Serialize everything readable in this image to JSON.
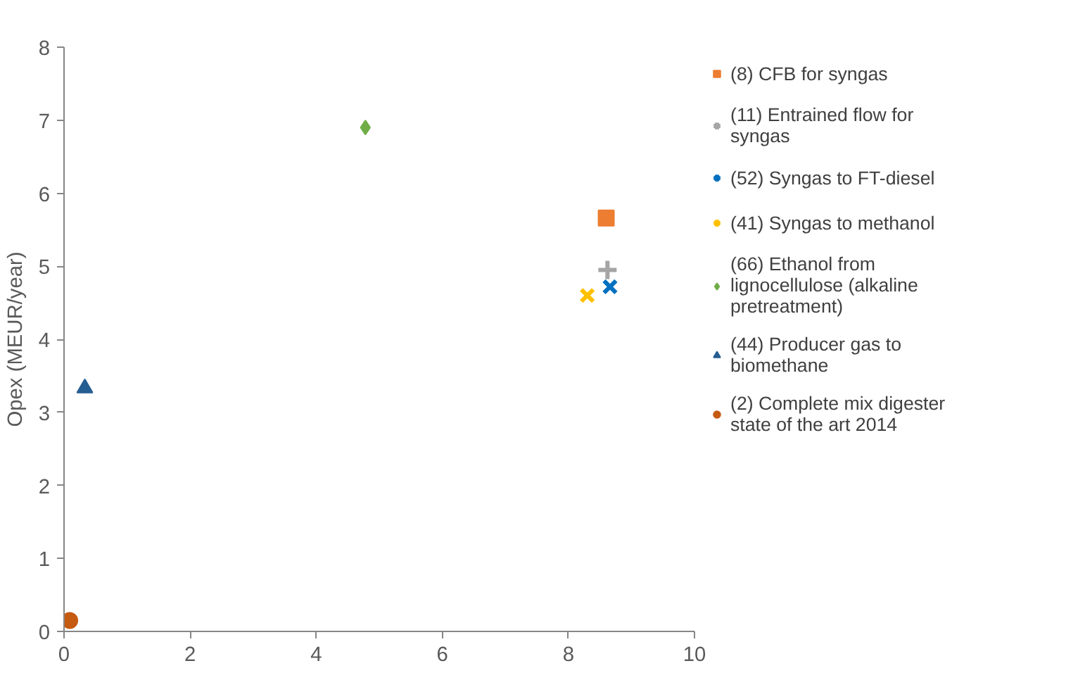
{
  "chart_data": {
    "type": "scatter",
    "ylabel": "Opex (MEUR/year)",
    "xlim": [
      0,
      10
    ],
    "ylim": [
      0,
      8
    ],
    "xticks": [
      0,
      2,
      4,
      6,
      8,
      10
    ],
    "yticks": [
      0,
      1,
      2,
      3,
      4,
      5,
      6,
      7,
      8
    ],
    "grid": false,
    "legend": "right",
    "series": [
      {
        "name": "(8) CFB for syngas",
        "color": "#ed7d31",
        "marker": "square",
        "x": [
          8.6
        ],
        "values": [
          5.66
        ]
      },
      {
        "name": "(11) Entrained flow for syngas",
        "color": "#a5a5a5",
        "marker": "cross",
        "x": [
          8.62
        ],
        "values": [
          4.95
        ]
      },
      {
        "name": "(52) Syngas to FT-diesel",
        "color": "#0070c0",
        "marker": "x",
        "x": [
          8.66
        ],
        "values": [
          4.72
        ]
      },
      {
        "name": "(41) Syngas to methanol",
        "color": "#ffc000",
        "marker": "x",
        "x": [
          8.3
        ],
        "values": [
          4.6
        ]
      },
      {
        "name": "(66) Ethanol from lignocellulose (alkaline pretreatment)",
        "color": "#70ad47",
        "marker": "diamond",
        "x": [
          4.78
        ],
        "values": [
          6.9
        ]
      },
      {
        "name": "(44) Producer gas to biomethane",
        "color": "#255e91",
        "marker": "triangle",
        "x": [
          0.33
        ],
        "values": [
          3.33
        ]
      },
      {
        "name": "(2) Complete mix digester state of the art 2014",
        "color": "#c55a11",
        "marker": "circle",
        "x": [
          0.09
        ],
        "values": [
          0.15
        ]
      }
    ]
  }
}
